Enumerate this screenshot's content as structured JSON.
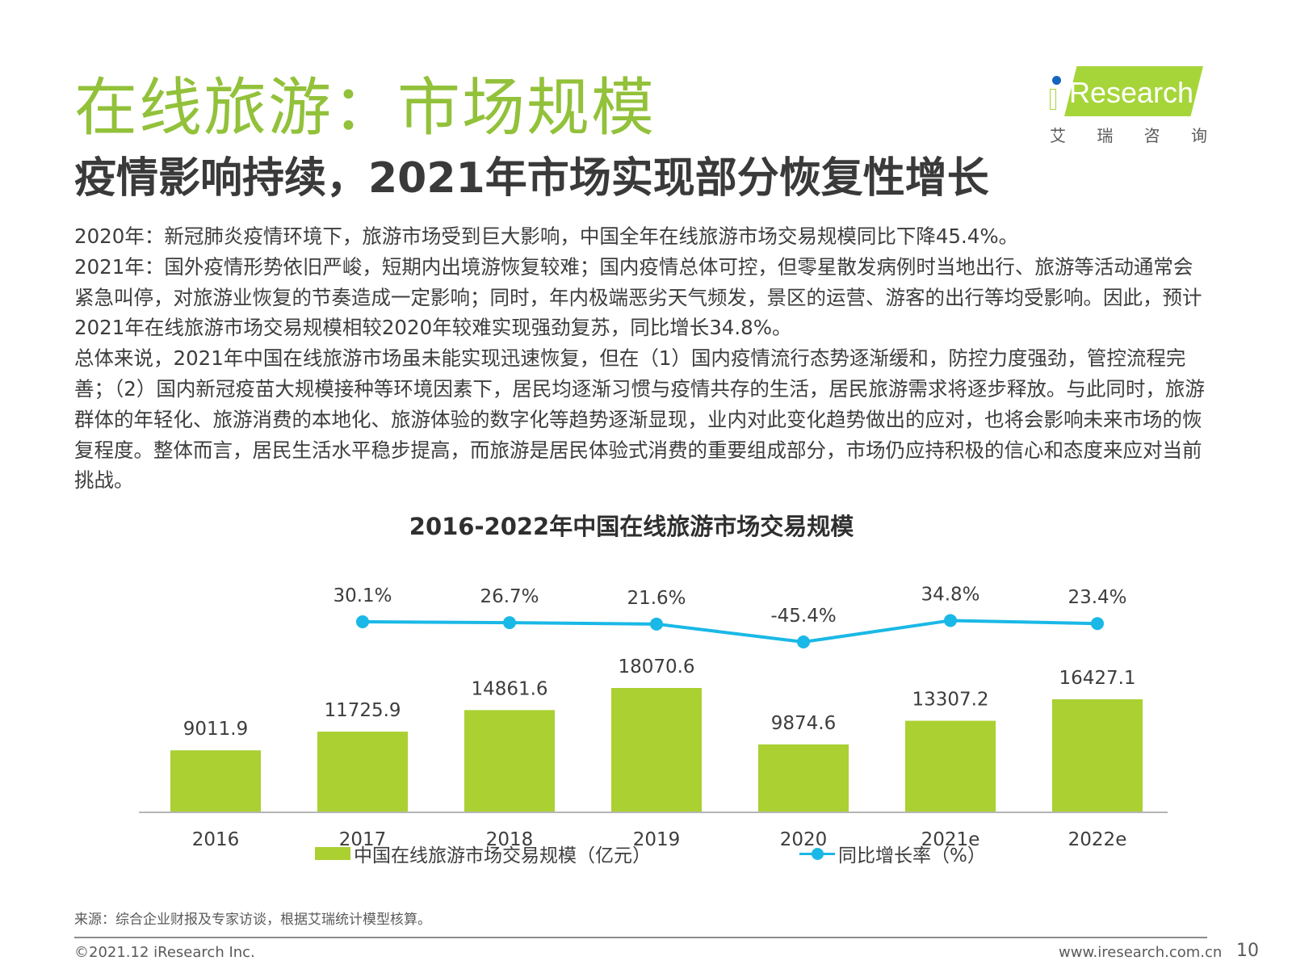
{
  "page": {
    "title": "在线旅游：市场规模",
    "subtitle": "疫情影响持续，2021年市场实现部分恢复性增长"
  },
  "logo": {
    "word": "Research",
    "cn_chars": [
      "艾",
      "瑞",
      "咨",
      "询"
    ],
    "colors": {
      "band": "#a6d53a",
      "dot": "#1565c0"
    }
  },
  "body": {
    "paragraphs": [
      "2020年：新冠肺炎疫情环境下，旅游市场受到巨大影响，中国全年在线旅游市场交易规模同比下降45.4%。",
      "2021年：国外疫情形势依旧严峻，短期内出境游恢复较难；国内疫情总体可控，但零星散发病例时当地出行、旅游等活动通常会紧急叫停，对旅游业恢复的节奏造成一定影响；同时，年内极端恶劣天气频发，景区的运营、游客的出行等均受影响。因此，预计2021年在线旅游市场交易规模相较2020年较难实现强劲复苏，同比增长34.8%。",
      "总体来说，2021年中国在线旅游市场虽未能实现迅速恢复，但在（1）国内疫情流行态势逐渐缓和，防控力度强劲，管控流程完善；（2）国内新冠疫苗大规模接种等环境因素下，居民均逐渐习惯与疫情共存的生活，居民旅游需求将逐步释放。与此同时，旅游群体的年轻化、旅游消费的本地化、旅游体验的数字化等趋势逐渐显现，业内对此变化趋势做出的应对，也将会影响未来市场的恢复程度。整体而言，居民生活水平稳步提高，而旅游是居民体验式消费的重要组成部分，市场仍应持积极的信心和态度来应对当前挑战。"
    ]
  },
  "chart_data": {
    "type": "bar",
    "title": "2016-2022年中国在线旅游市场交易规模",
    "categories": [
      "2016",
      "2017",
      "2018",
      "2019",
      "2020",
      "2021e",
      "2022e"
    ],
    "series": [
      {
        "name": "中国在线旅游市场交易规模（亿元）",
        "type": "bar",
        "values": [
          9011.9,
          11725.9,
          14861.6,
          18070.6,
          9874.6,
          13307.2,
          16427.1
        ],
        "labels": [
          "9011.9",
          "11725.9",
          "14861.6",
          "18070.6",
          "9874.6",
          "13307.2",
          "16427.1"
        ],
        "color": "#aad032"
      },
      {
        "name": "同比增长率（%）",
        "type": "line",
        "values": [
          null,
          30.1,
          26.7,
          21.6,
          -45.4,
          34.8,
          23.4
        ],
        "labels": [
          "",
          "30.1%",
          "26.7%",
          "21.6%",
          "-45.4%",
          "34.8%",
          "23.4%"
        ],
        "color": "#1ab8e6"
      }
    ],
    "legend_position": "bottom",
    "grid": false
  },
  "source": "来源：综合企业财报及专家访谈，根据艾瑞统计模型核算。",
  "footer": {
    "copyright": "©2021.12 iResearch Inc.",
    "website": "www.iresearch.com.cn",
    "page_number": "10"
  }
}
